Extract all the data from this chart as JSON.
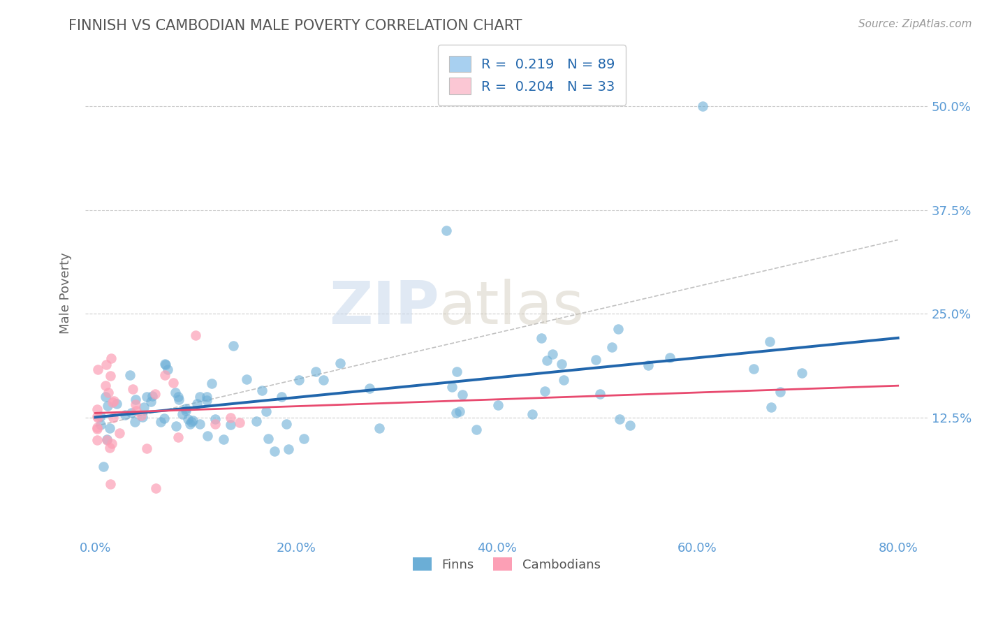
{
  "title": "FINNISH VS CAMBODIAN MALE POVERTY CORRELATION CHART",
  "source": "Source: ZipAtlas.com",
  "xlabel_vals": [
    0,
    20,
    40,
    60,
    80
  ],
  "ylabel_vals": [
    12.5,
    25.0,
    37.5,
    50.0
  ],
  "ylabel_label": "Male Poverty",
  "finn_color": "#6baed6",
  "camb_color": "#fc9fb5",
  "finn_line_color": "#2166ac",
  "camb_line_color": "#e84a6f",
  "legend_finn_label": "R =  0.219   N = 89",
  "legend_camb_label": "R =  0.204   N = 33",
  "legend_finn_box": "#a8d0f0",
  "legend_camb_box": "#fbc7d4",
  "watermark": "ZIPatlas",
  "background_color": "#ffffff",
  "grid_color": "#cccccc",
  "title_color": "#555555",
  "axis_color": "#5b9bd5",
  "source_color": "#999999",
  "ylabel_color": "#666666",
  "finn_slope": 0.085,
  "finn_intercept": 12.8,
  "camb_slope": 0.18,
  "camb_intercept": 13.5,
  "dash_slope": 0.28,
  "dash_intercept": 11.5
}
